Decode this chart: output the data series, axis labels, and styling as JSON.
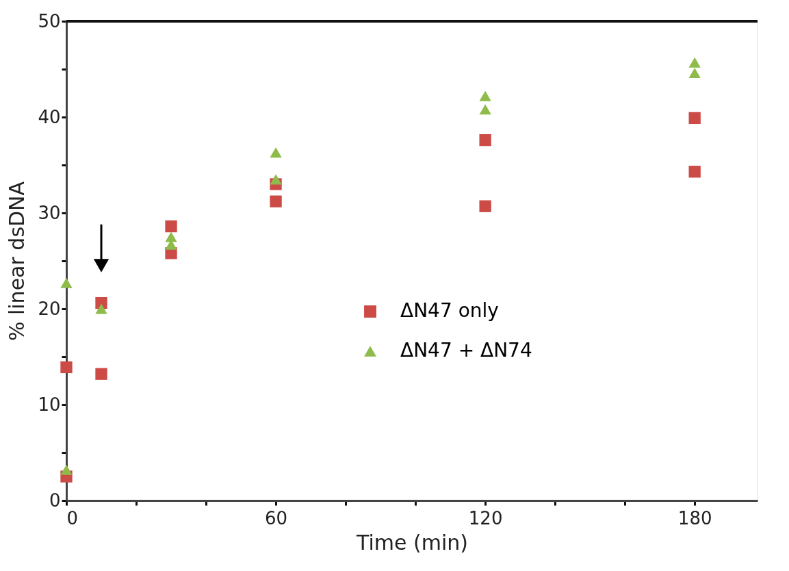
{
  "chart_data": {
    "type": "scatter",
    "xlabel": "Time  (min)",
    "ylabel": "% linear dsDNA",
    "xlim": [
      0,
      198
    ],
    "ylim": [
      0,
      50
    ],
    "xticks": [
      0,
      {
        "value": 20,
        "label": null
      },
      {
        "value": 40,
        "label": null
      },
      60,
      {
        "value": 80,
        "label": null
      },
      {
        "value": 100,
        "label": null
      },
      120,
      {
        "value": 140,
        "label": null
      },
      {
        "value": 160,
        "label": null
      },
      180
    ],
    "yticks": [
      0,
      {
        "value": 5,
        "label": null
      },
      10,
      {
        "value": 15,
        "label": null
      },
      20,
      {
        "value": 25,
        "label": null
      },
      30,
      {
        "value": 35,
        "label": null
      },
      40,
      {
        "value": 45,
        "label": null
      },
      50
    ],
    "grid": false,
    "legend": "right",
    "series": [
      {
        "name": "ΔN47 only",
        "color": "#cc4b47",
        "marker": "square",
        "x": [
          0,
          0,
          10,
          10,
          30,
          30,
          60,
          60,
          120,
          120,
          180,
          180
        ],
        "values": [
          2.5,
          13.9,
          20.6,
          13.2,
          28.6,
          25.8,
          33.0,
          31.2,
          37.6,
          30.7,
          39.9,
          34.3
        ]
      },
      {
        "name": "ΔN47 + ΔN74",
        "color": "#8fbb4a",
        "marker": "triangle",
        "x": [
          0,
          0,
          10,
          30,
          30,
          60,
          60,
          120,
          120,
          180,
          180
        ],
        "values": [
          22.7,
          3.2,
          20.0,
          27.5,
          26.7,
          36.3,
          33.5,
          42.2,
          40.8,
          45.7,
          44.6
        ]
      }
    ]
  }
}
